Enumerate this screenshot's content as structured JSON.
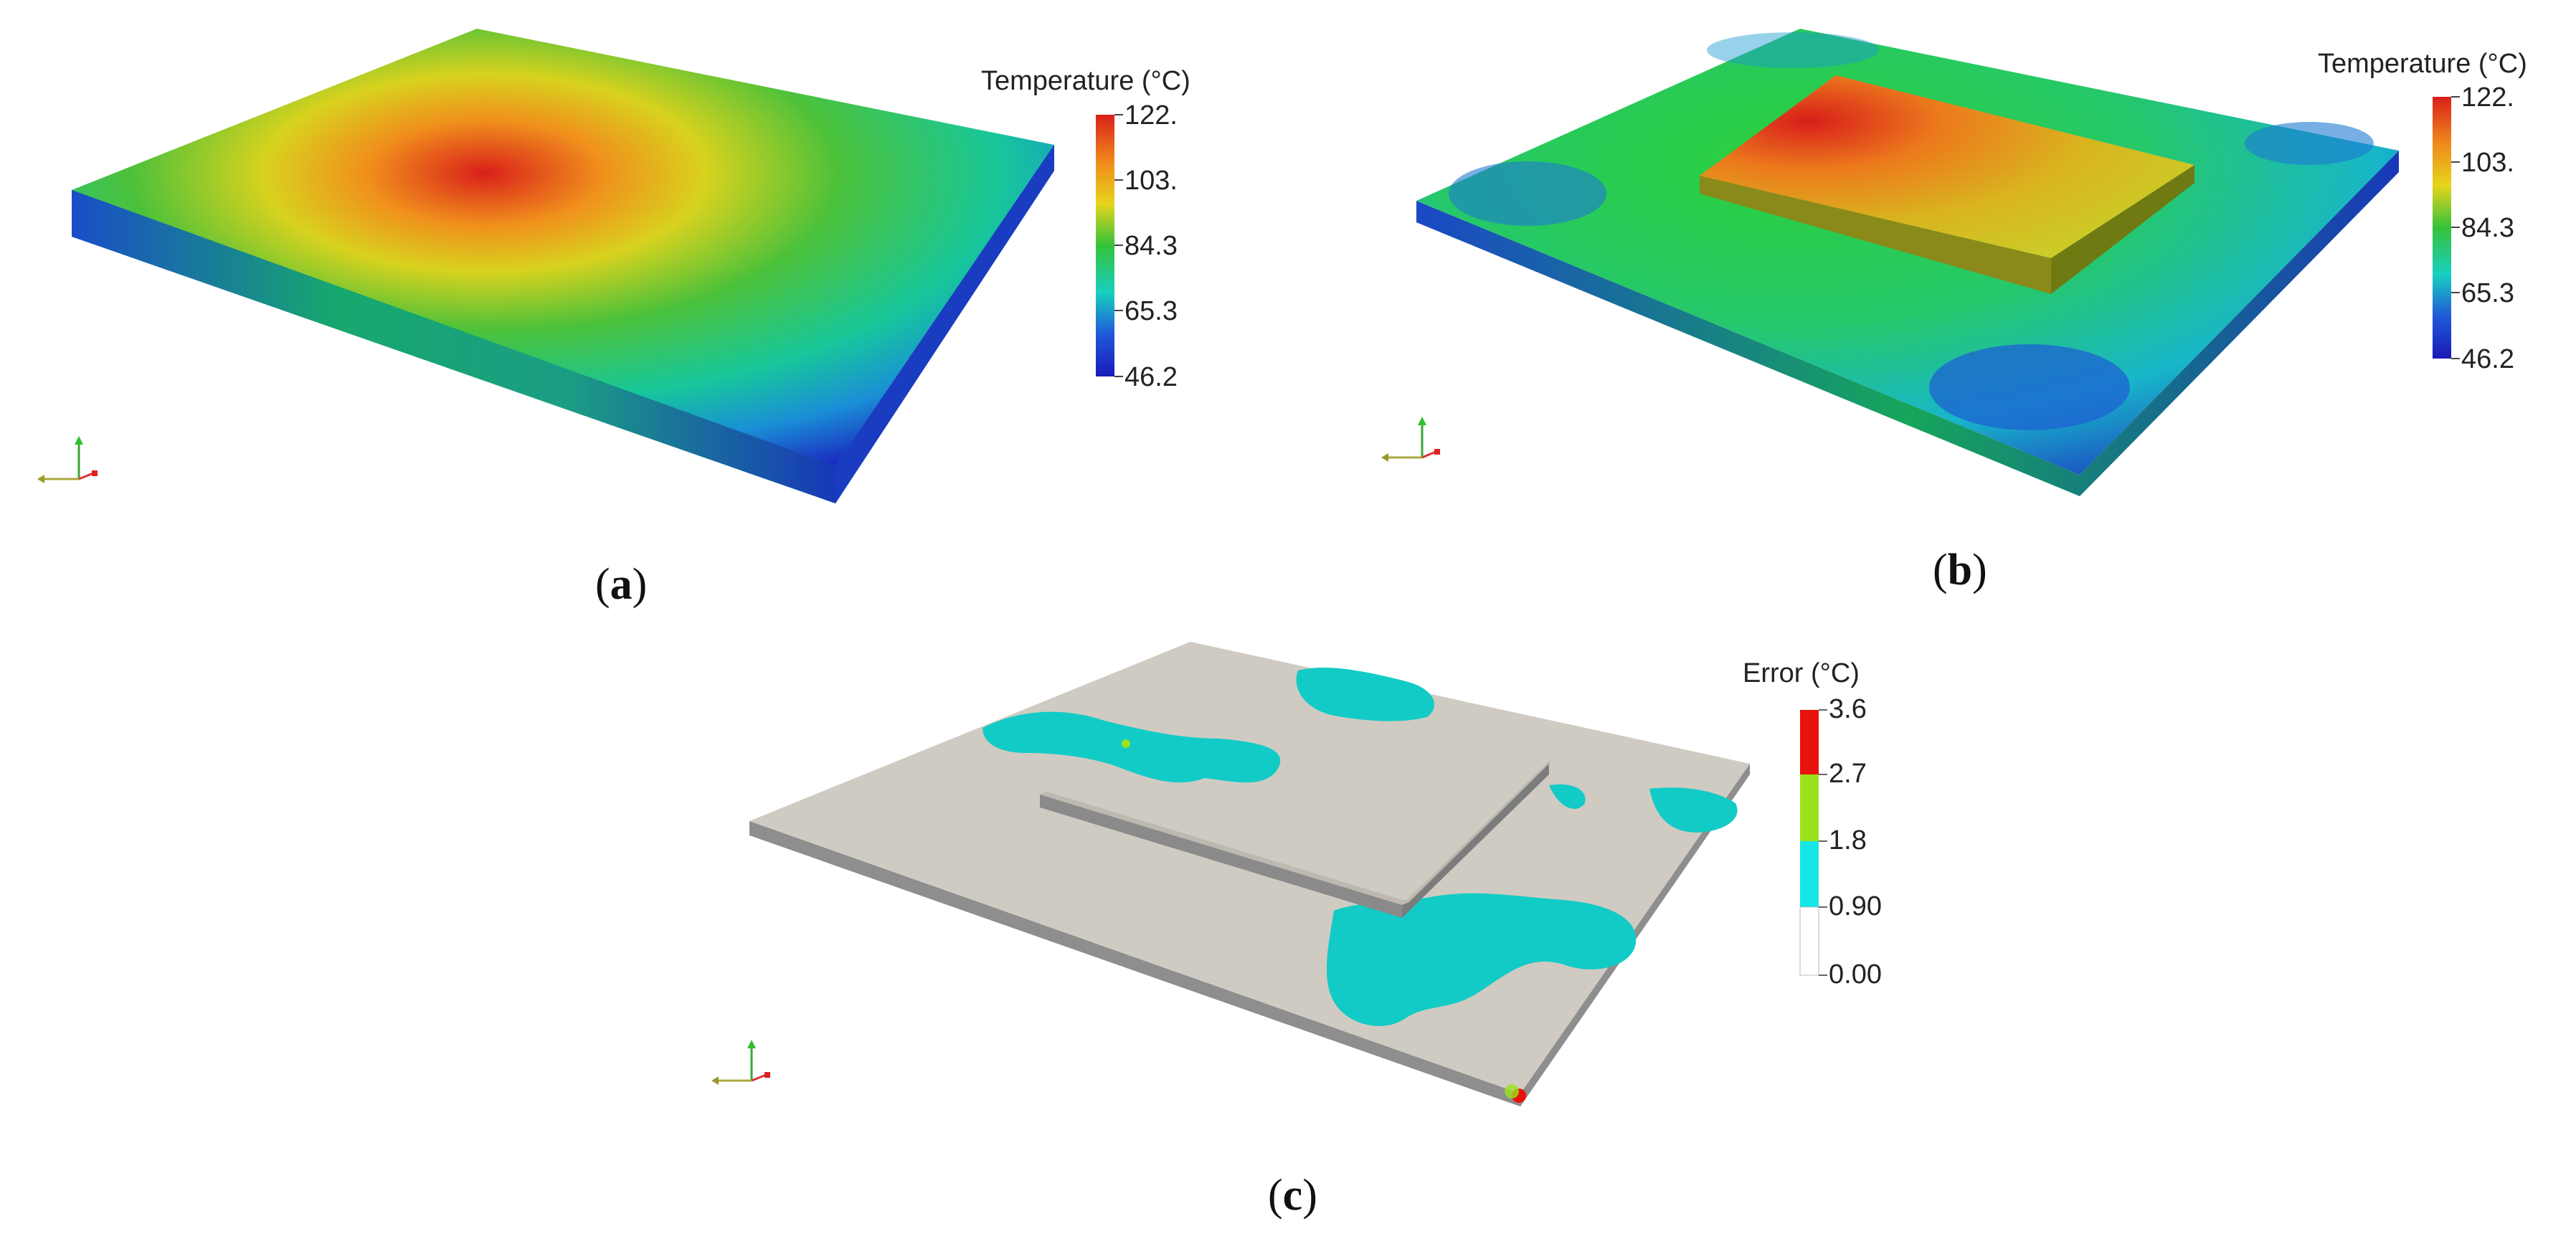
{
  "panels": [
    {
      "id": "a",
      "caption_open": "(",
      "caption_letter": "a",
      "caption_close": ")",
      "legend_title": "Temperature (°C)",
      "ticks": [
        "122.",
        "103.",
        "84.3",
        "65.3",
        "46.2"
      ]
    },
    {
      "id": "b",
      "caption_open": "(",
      "caption_letter": "b",
      "caption_close": ")",
      "legend_title": "Temperature (°C)",
      "ticks": [
        "122.",
        "103.",
        "84.3",
        "65.3",
        "46.2"
      ]
    },
    {
      "id": "c",
      "caption_open": "(",
      "caption_letter": "c",
      "caption_close": ")",
      "legend_title": "Error (°C)",
      "ticks": [
        "3.6",
        "2.7",
        "1.8",
        "0.90",
        "0.00"
      ]
    }
  ],
  "colormaps": {
    "temperature": [
      "#d9201a",
      "#f08a1c",
      "#e9d21a",
      "#35c23a",
      "#1dcfc1",
      "#1f4fd6",
      "#1a1ab8"
    ],
    "error": [
      "#e8130d",
      "#9be21a",
      "#16e6e6",
      "#ffffff"
    ]
  },
  "surface_colors": {
    "plate_gray": "#cfcbc2",
    "plate_edge": "#8e8e8e",
    "error_cyan": "#12cbc6"
  }
}
